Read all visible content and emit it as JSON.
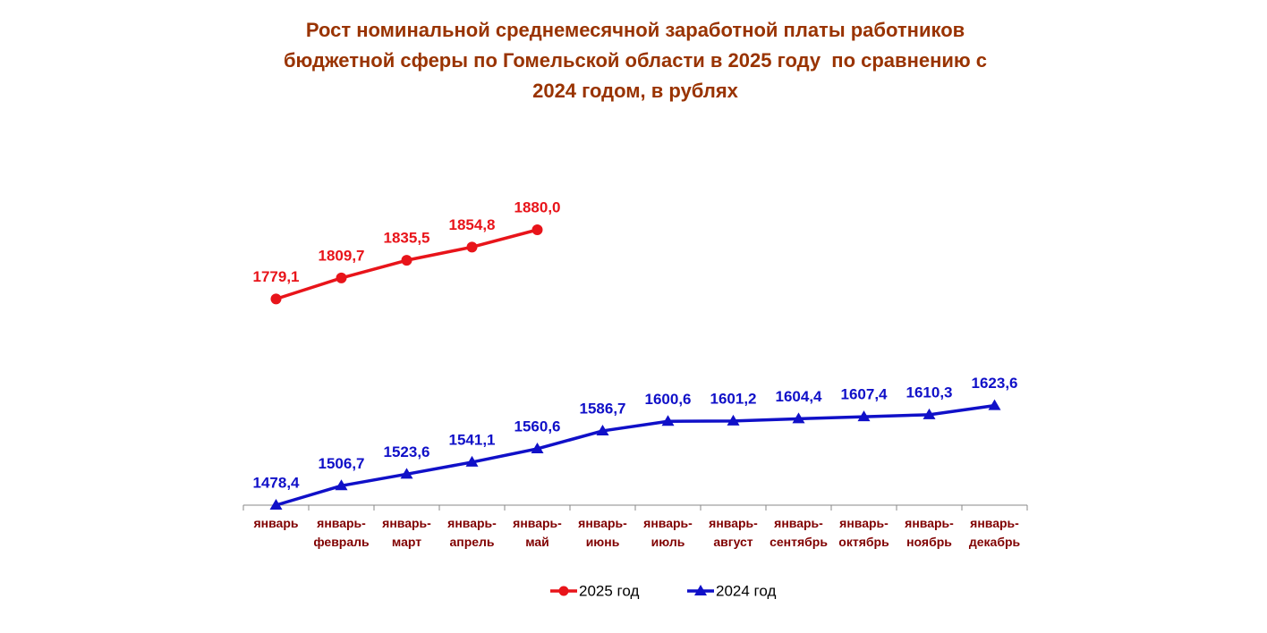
{
  "chart_data": {
    "type": "line",
    "title": "Рост номинальной среднемесячной заработной платы работников бюджетной сферы по Гомельской области в 2025 году  по сравнению с 2024 годом, в рублях",
    "categories": [
      "январь",
      "январь-февраль",
      "январь-март",
      "январь-апрель",
      "январь-май",
      "январь-июнь",
      "январь-июль",
      "январь-август",
      "январь-сентябрь",
      "январь-октябрь",
      "январь-ноябрь",
      "январь-декабрь"
    ],
    "series": [
      {
        "name": "2025 год",
        "color": "#e8141a",
        "marker": "circle",
        "values": [
          1779.1,
          1809.7,
          1835.5,
          1854.8,
          1880.0,
          null,
          null,
          null,
          null,
          null,
          null,
          null
        ],
        "value_labels": [
          "1779,1",
          "1809,7",
          "1835,5",
          "1854,8",
          "1880,0",
          null,
          null,
          null,
          null,
          null,
          null,
          null
        ]
      },
      {
        "name": "2024 год",
        "color": "#1010c8",
        "marker": "triangle",
        "values": [
          1478.4,
          1506.7,
          1523.6,
          1541.1,
          1560.6,
          1586.7,
          1600.6,
          1601.2,
          1604.4,
          1607.4,
          1610.3,
          1623.6
        ],
        "value_labels": [
          "1478,4",
          "1506,7",
          "1523,6",
          "1541,1",
          "1560,6",
          "1586,7",
          "1600,6",
          "1601,2",
          "1604,4",
          "1607,4",
          "1610,3",
          "1623,6"
        ]
      }
    ],
    "legend": "bottom"
  }
}
